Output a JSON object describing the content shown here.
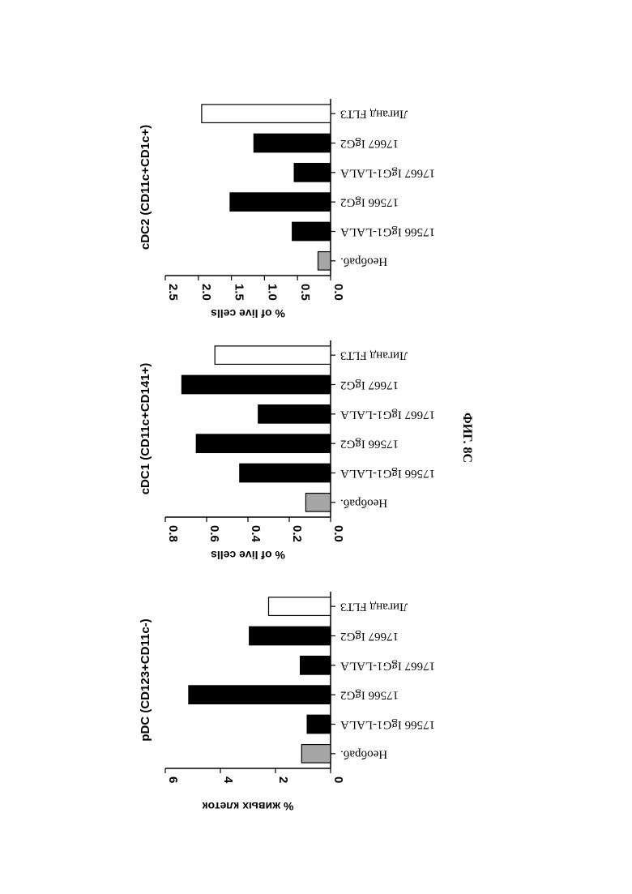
{
  "figure_label": "ФИГ. 8С",
  "styles": {
    "untreated_fill": "#a6a6a6",
    "antibody_fill": "#000000",
    "ligand_fill": "#ffffff"
  },
  "chart_data": [
    {
      "type": "bar",
      "title": "pDC (CD123+CD11c-)",
      "ylabel": "% живых клеток",
      "ylim": [
        0,
        6
      ],
      "ticks": [
        "0",
        "2",
        "4",
        "6"
      ],
      "tick_values": [
        0,
        2,
        4,
        6
      ],
      "categories": [
        "Необраб.",
        "17566 IgG1-LALA",
        "17566 IgG2",
        "17667 IgG1-LALA",
        "17667 IgG2",
        "Лиганд FLT3"
      ],
      "values": [
        1.05,
        0.85,
        5.15,
        1.1,
        2.95,
        2.25
      ],
      "fills": [
        "untreated_fill",
        "antibody_fill",
        "antibody_fill",
        "antibody_fill",
        "antibody_fill",
        "ligand_fill"
      ]
    },
    {
      "type": "bar",
      "title": "cDC1 (CD11c+CD141+)",
      "ylabel": "% of live cells",
      "ylim": [
        0,
        0.8
      ],
      "ticks": [
        "0.0",
        "0.2",
        "0.4",
        "0.6",
        "0.8"
      ],
      "tick_values": [
        0,
        0.2,
        0.4,
        0.6,
        0.8
      ],
      "categories": [
        "Необраб.",
        "17566 IgG1-LALA",
        "17566 IgG2",
        "17667 IgG1-LALA",
        "17667 IgG2",
        "Лиганд FLT3"
      ],
      "values": [
        0.12,
        0.44,
        0.65,
        0.35,
        0.72,
        0.56
      ],
      "fills": [
        "untreated_fill",
        "antibody_fill",
        "antibody_fill",
        "antibody_fill",
        "antibody_fill",
        "ligand_fill"
      ]
    },
    {
      "type": "bar",
      "title": "cDC2 (CD11c+CD1c+)",
      "ylabel": "% of live cells",
      "ylim": [
        0,
        2.5
      ],
      "ticks": [
        "0.0",
        "0.5",
        "1.0",
        "1.5",
        "2.0",
        "2.5"
      ],
      "tick_values": [
        0,
        0.5,
        1.0,
        1.5,
        2.0,
        2.5
      ],
      "categories": [
        "Необраб.",
        "17566 IgG1-LALA",
        "17566 IgG2",
        "17667 IgG1-LALA",
        "17667 IgG2",
        "Лиганд FLT3"
      ],
      "values": [
        0.19,
        0.58,
        1.52,
        0.55,
        1.16,
        1.95
      ],
      "fills": [
        "untreated_fill",
        "antibody_fill",
        "antibody_fill",
        "antibody_fill",
        "antibody_fill",
        "ligand_fill"
      ]
    }
  ]
}
